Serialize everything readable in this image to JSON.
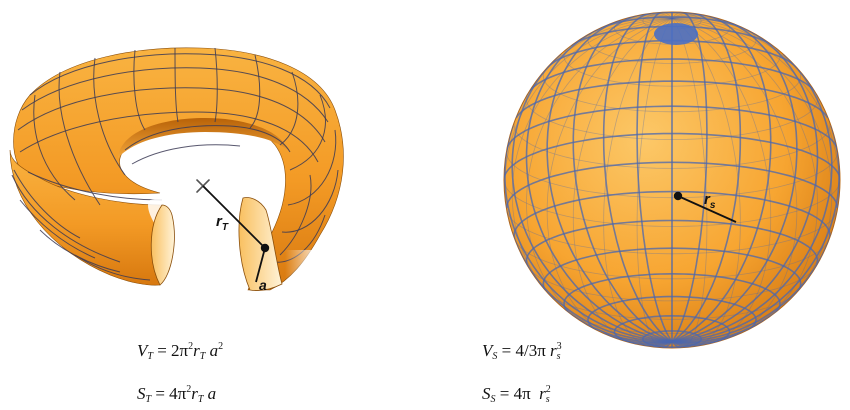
{
  "torus": {
    "radius_label_main": "r",
    "radius_label_sub": "T",
    "tube_label": "a",
    "volume": {
      "lhs": "V",
      "lhs_sub": "T",
      "eq": "= 2π",
      "exp": "2",
      "r": "r",
      "r_sub": "T",
      "a": "a",
      "a_exp": "2"
    },
    "surface": {
      "lhs": "S",
      "lhs_sub": "T",
      "eq": "= 4π",
      "exp": "2",
      "r": "r",
      "r_sub": "T",
      "a": "a"
    }
  },
  "sphere": {
    "radius_label_main": "r",
    "radius_label_sub": "s",
    "volume": {
      "lhs": "V",
      "lhs_sub": "S",
      "eq": "= 4/3π",
      "r": "r",
      "r_sub": "s",
      "r_exp": "3"
    },
    "surface": {
      "lhs": "S",
      "lhs_sub": "S",
      "eq": "= 4π",
      "r": "r",
      "r_sub": "s",
      "r_exp": "2"
    }
  },
  "colors": {
    "orange": "#f7a531",
    "orange_dark": "#d97a12",
    "orange_light": "#fbc462",
    "grid_torus": "#3b3a55",
    "grid_sphere": "#4a67b0",
    "pole": "#4a6fc4"
  }
}
